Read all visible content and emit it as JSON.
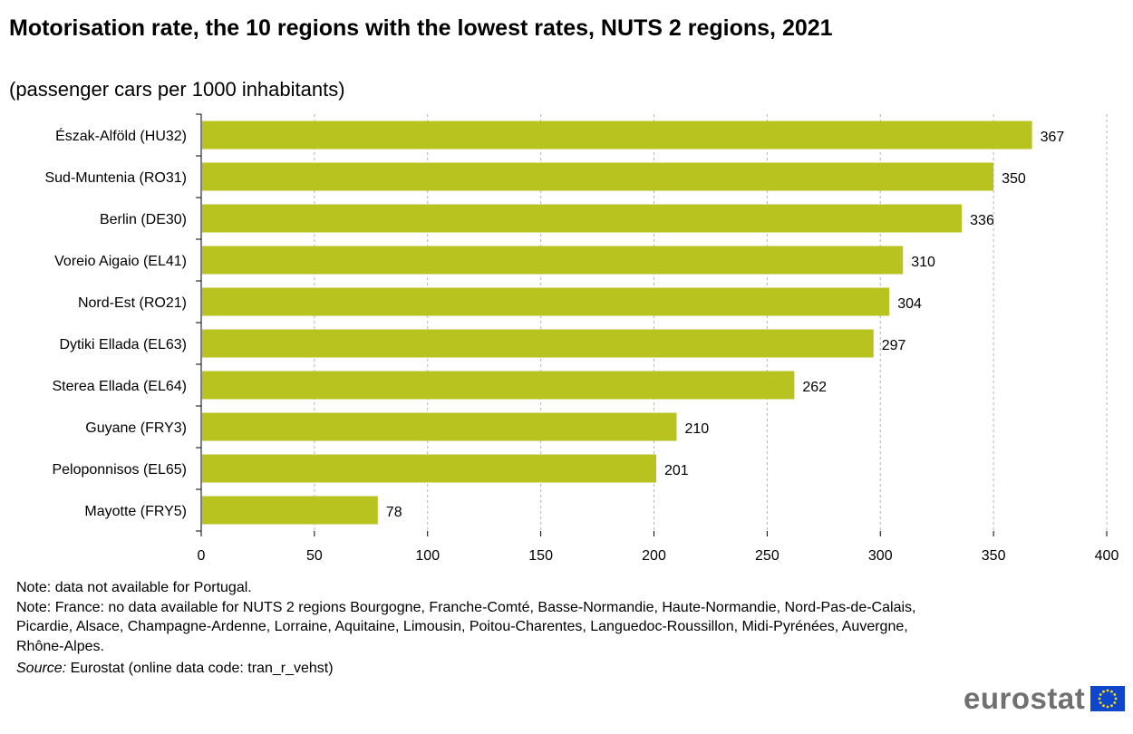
{
  "title": "Motorisation rate, the 10 regions with the lowest rates, NUTS 2 regions, 2021",
  "subtitle": "(passenger cars per 1000 inhabitants)",
  "notes": [
    "Note: data not available  for Portugal.",
    "Note: France: no data available  for NUTS  2 regions Bourgogne,  Franche-Comté,  Basse-Normandie,  Haute-Normandie,  Nord-Pas-de-Calais, Picardie, Alsace, Champagne-Ardenne,  Lorraine, Aquitaine,  Limousin,  Poitou-Charentes, Languedoc-Roussillon,  Midi-Pyrénées, Auvergne,  Rhône-Alpes."
  ],
  "source": {
    "label": "Source:",
    "text": " Eurostat (online data code: tran_r_vehst)"
  },
  "logo": {
    "text": "eurostat"
  },
  "colors": {
    "bar": "#b9c31f",
    "grid": "#b3b3b3",
    "axis": "#000000"
  },
  "chart_data": {
    "type": "bar",
    "orientation": "horizontal",
    "categories": [
      "Észak-Alföld (HU32)",
      "Sud-Muntenia (RO31)",
      "Berlin (DE30)",
      "Voreio Aigaio (EL41)",
      "Nord-Est (RO21)",
      "Dytiki Ellada (EL63)",
      "Sterea Ellada (EL64)",
      "Guyane (FRY3)",
      "Peloponnisos (EL65)",
      "Mayotte (FRY5)"
    ],
    "values": [
      367,
      350,
      336,
      310,
      304,
      297,
      262,
      210,
      201,
      78
    ],
    "xlim": [
      0,
      400
    ],
    "xticks": [
      0,
      50,
      100,
      150,
      200,
      250,
      300,
      350,
      400
    ],
    "grid": "vertical dashed",
    "data_labels": true
  }
}
